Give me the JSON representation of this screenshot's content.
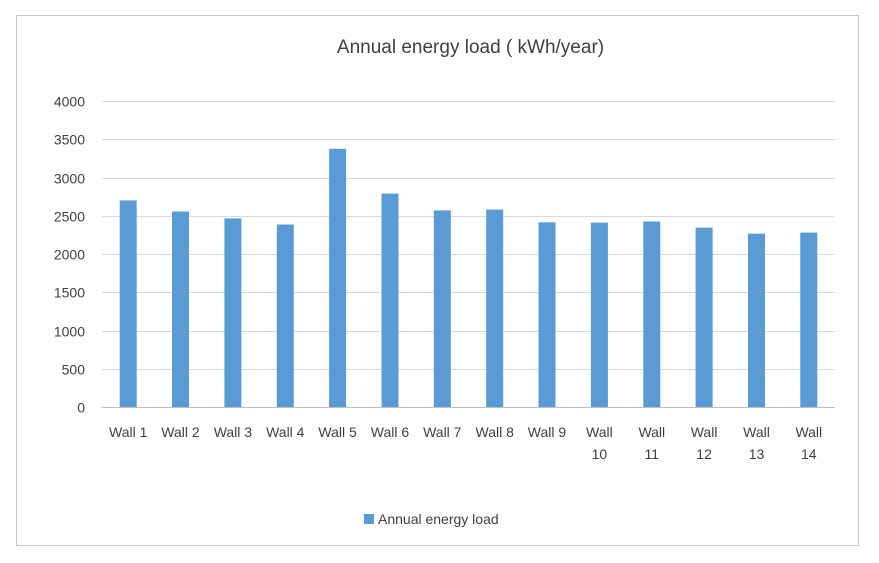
{
  "chart_data": {
    "type": "bar",
    "title": "Annual energy load ( kWh/year)",
    "xlabel": "",
    "ylabel": "",
    "categories": [
      [
        "Wall 1"
      ],
      [
        "Wall 2"
      ],
      [
        "Wall 3"
      ],
      [
        "Wall 4"
      ],
      [
        "Wall 5"
      ],
      [
        "Wall 6"
      ],
      [
        "Wall 7"
      ],
      [
        "Wall 8"
      ],
      [
        "Wall 9"
      ],
      [
        "Wall",
        "10"
      ],
      [
        "Wall",
        "11"
      ],
      [
        "Wall",
        "12"
      ],
      [
        "Wall",
        "13"
      ],
      [
        "Wall",
        "14"
      ]
    ],
    "series": [
      {
        "name": "Annual energy load",
        "color": "#5b9bd5",
        "values": [
          2700,
          2555,
          2465,
          2385,
          3375,
          2790,
          2570,
          2580,
          2415,
          2410,
          2425,
          2345,
          2265,
          2280
        ]
      }
    ],
    "ylim": [
      0,
      4000
    ],
    "yticks": [
      0,
      500,
      1000,
      1500,
      2000,
      2500,
      3000,
      3500,
      4000
    ],
    "grid": true,
    "legend_position": "bottom"
  }
}
